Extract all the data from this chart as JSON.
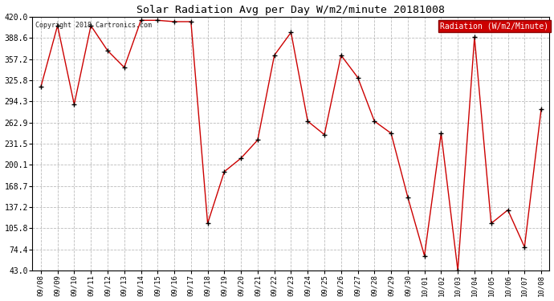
{
  "title": "Solar Radiation Avg per Day W/m2/minute 20181008",
  "copyright": "Copyright 2018 Cartronics.com",
  "legend_label": "Radiation (W/m2/Minute)",
  "background_color": "#ffffff",
  "plot_background_color": "#ffffff",
  "line_color": "#cc0000",
  "marker_color": "#000000",
  "legend_bg": "#cc0000",
  "legend_text_color": "#ffffff",
  "grid_color": "#aaaaaa",
  "dates": [
    "09/08",
    "09/09",
    "09/10",
    "09/11",
    "09/12",
    "09/13",
    "09/14",
    "09/15",
    "09/16",
    "09/17",
    "09/18",
    "09/19",
    "09/20",
    "09/21",
    "09/22",
    "09/23",
    "09/24",
    "09/25",
    "09/26",
    "09/27",
    "09/28",
    "09/29",
    "09/30",
    "10/01",
    "10/02",
    "10/03",
    "10/04",
    "10/05",
    "10/06",
    "10/07",
    "10/08"
  ],
  "values": [
    316,
    407,
    290,
    407,
    370,
    345,
    415,
    415,
    413,
    413,
    113,
    190,
    210,
    237,
    363,
    397,
    265,
    245,
    363,
    330,
    265,
    247,
    152,
    65,
    247,
    43,
    390,
    113,
    133,
    78,
    283
  ],
  "ylim": [
    43.0,
    420.0
  ],
  "yticks": [
    43.0,
    74.4,
    105.8,
    137.2,
    168.7,
    200.1,
    231.5,
    262.9,
    294.3,
    325.8,
    357.2,
    388.6,
    420.0
  ],
  "ytick_labels": [
    "43.0",
    "74.4",
    "105.8",
    "137.2",
    "168.7",
    "200.1",
    "231.5",
    "262.9",
    "294.3",
    "325.8",
    "357.2",
    "388.6",
    "420.0"
  ]
}
